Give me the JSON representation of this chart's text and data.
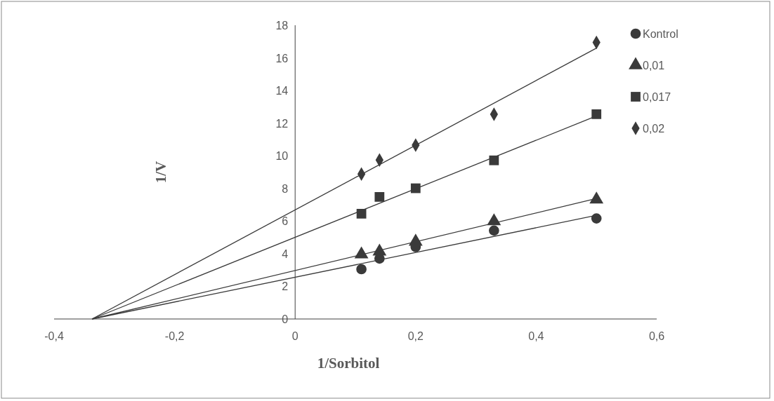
{
  "chart_data": {
    "type": "scatter",
    "xlabel": "1/Sorbitol",
    "ylabel": "1/V",
    "xlim": [
      -0.4,
      0.6
    ],
    "xticks": [
      {
        "value": -0.4,
        "label": "-0,4"
      },
      {
        "value": -0.2,
        "label": "-0,2"
      },
      0,
      {
        "value": 0.2,
        "label": "0,2"
      },
      {
        "value": 0.4,
        "label": "0,4"
      },
      {
        "value": 0.6,
        "label": "0,6"
      }
    ],
    "ylim": [
      0,
      18
    ],
    "yticks": [
      0,
      2,
      4,
      6,
      8,
      10,
      12,
      14,
      16,
      18
    ],
    "grid": false,
    "legend": "top right",
    "series": [
      {
        "name": "Kontrol",
        "color": "#3a3a3a",
        "marker": "circle",
        "x": [
          0.11,
          0.14,
          0.2,
          0.33,
          0.5
        ],
        "values": [
          3.05,
          3.7,
          4.41,
          5.42,
          6.16
        ]
      },
      {
        "name": "0,01",
        "color": "#3a3a3a",
        "marker": "triangle",
        "x": [
          0.11,
          0.14,
          0.2,
          0.33,
          0.5
        ],
        "values": [
          3.96,
          4.13,
          4.74,
          5.99,
          7.32
        ]
      },
      {
        "name": "0,017",
        "color": "#3a3a3a",
        "marker": "square",
        "x": [
          0.11,
          0.14,
          0.2,
          0.33,
          0.5
        ],
        "values": [
          6.45,
          7.48,
          8.01,
          9.72,
          12.55
        ]
      },
      {
        "name": "0,02",
        "color": "#3a3a3a",
        "marker": "diamond",
        "x": [
          0.11,
          0.14,
          0.2,
          0.33,
          0.5
        ],
        "values": [
          8.88,
          9.74,
          10.65,
          12.54,
          16.95
        ]
      },
      {
        "type": "line",
        "color": "#3a3a3a",
        "x": [
          -0.337,
          0.5
        ],
        "values": [
          0,
          6.35
        ]
      },
      {
        "type": "line",
        "color": "#3a3a3a",
        "x": [
          -0.337,
          0.5
        ],
        "values": [
          0,
          7.38
        ]
      },
      {
        "type": "line",
        "color": "#3a3a3a",
        "x": [
          -0.337,
          0.5
        ],
        "values": [
          0,
          12.44
        ]
      },
      {
        "type": "line",
        "color": "#3a3a3a",
        "x": [
          -0.337,
          0.5
        ],
        "values": [
          0,
          16.6
        ]
      }
    ]
  }
}
